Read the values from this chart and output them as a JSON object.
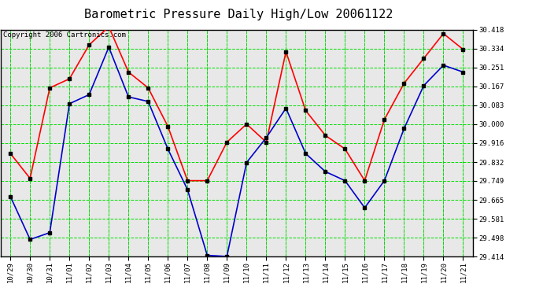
{
  "title": "Barometric Pressure Daily High/Low 20061122",
  "copyright": "Copyright 2006 Cartronics.com",
  "background_color": "#ffffff",
  "plot_background": "#e8e8e8",
  "grid_color": "#00dd00",
  "labels": [
    "10/29",
    "10/30",
    "10/31",
    "11/01",
    "11/02",
    "11/03",
    "11/04",
    "11/05",
    "11/06",
    "11/07",
    "11/08",
    "11/09",
    "11/10",
    "11/11",
    "11/12",
    "11/13",
    "11/14",
    "11/15",
    "11/16",
    "11/17",
    "11/18",
    "11/19",
    "11/20",
    "11/21"
  ],
  "high_values": [
    29.87,
    29.76,
    30.16,
    30.2,
    30.35,
    30.43,
    30.23,
    30.16,
    29.99,
    29.75,
    29.75,
    29.92,
    30.0,
    29.92,
    30.32,
    30.06,
    29.95,
    29.89,
    29.75,
    30.02,
    30.18,
    30.29,
    30.4,
    30.33
  ],
  "low_values": [
    29.68,
    29.49,
    29.52,
    30.09,
    30.13,
    30.34,
    30.12,
    30.1,
    29.89,
    29.71,
    29.42,
    29.415,
    29.83,
    29.94,
    30.07,
    29.87,
    29.79,
    29.75,
    29.63,
    29.75,
    29.98,
    30.17,
    30.26,
    30.23
  ],
  "high_color": "#ff0000",
  "low_color": "#0000cc",
  "marker": "s",
  "marker_size": 3,
  "marker_color": "#000000",
  "line_width": 1.2,
  "ylim_min": 29.414,
  "ylim_max": 30.418,
  "yticks": [
    29.414,
    29.498,
    29.581,
    29.665,
    29.749,
    29.832,
    29.916,
    30.0,
    30.083,
    30.167,
    30.251,
    30.334,
    30.418
  ],
  "title_fontsize": 11,
  "tick_fontsize": 6.5,
  "copyright_fontsize": 6.5
}
